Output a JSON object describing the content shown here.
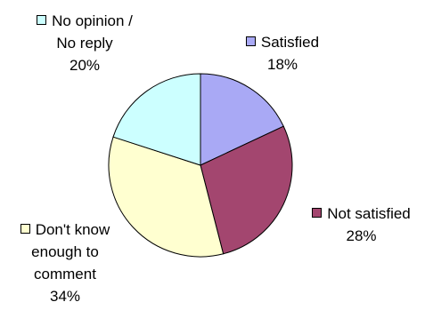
{
  "chart_data": {
    "type": "pie",
    "slices": [
      {
        "name": "Satisfied",
        "label_lines": [
          "Satisfied"
        ],
        "value": 18,
        "value_label": "18%",
        "color": "#a9a9f5"
      },
      {
        "name": "Not satisfied",
        "label_lines": [
          "Not satisfied"
        ],
        "value": 28,
        "value_label": "28%",
        "color": "#a3466f"
      },
      {
        "name": "Don't know enough to comment",
        "label_lines": [
          "Don't know",
          "enough to",
          "comment"
        ],
        "value": 34,
        "value_label": "34%",
        "color": "#ffffd0"
      },
      {
        "name": "No opinion / No reply",
        "label_lines": [
          "No opinion /",
          "No reply"
        ],
        "value": 20,
        "value_label": "20%",
        "color": "#ccffff"
      }
    ]
  }
}
